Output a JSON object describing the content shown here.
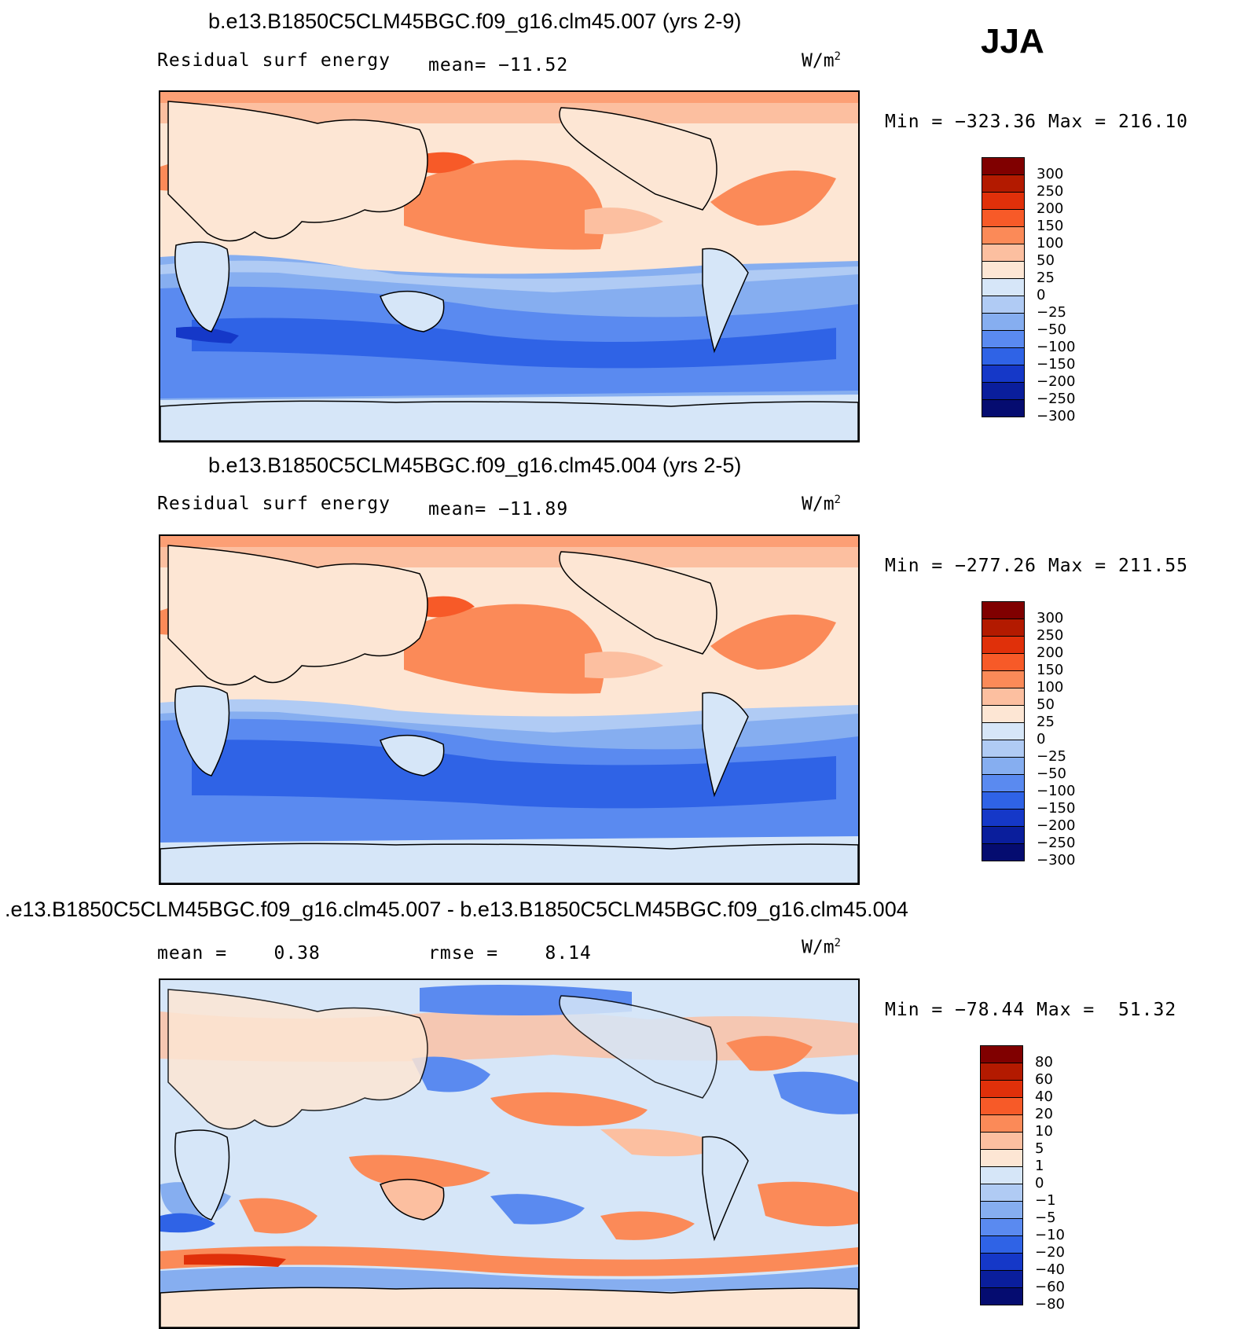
{
  "season": "JJA",
  "panels": [
    {
      "title": "b.e13.B1850C5CLM45BGC.f09_g16.clm45.007 (yrs 2-9)",
      "left_label": "Residual surf energy",
      "center_label": "mean= −11.52",
      "units": "W/m",
      "units_sup": "2",
      "minmax": "Min = −323.36 Max = 216.10"
    },
    {
      "title": "b.e13.B1850C5CLM45BGC.f09_g16.clm45.004 (yrs 2-5)",
      "left_label": "Residual surf energy",
      "center_label": "mean= −11.89",
      "units": "W/m",
      "units_sup": "2",
      "minmax": "Min = −277.26 Max = 211.55"
    },
    {
      "title": ".e13.B1850C5CLM45BGC.f09_g16.clm45.007 - b.e13.B1850C5CLM45BGC.f09_g16.clm45.004",
      "left_label": "mean =    0.38",
      "center_label": "rmse =    8.14",
      "units": "W/m",
      "units_sup": "2",
      "minmax": "Min = −78.44 Max =  51.32"
    }
  ],
  "colors": {
    "scale": [
      "#800000",
      "#b31a00",
      "#e0300a",
      "#f75a28",
      "#fb8a58",
      "#fcbfa0",
      "#fde6d4",
      "#d6e6f8",
      "#b0cbf4",
      "#86aef0",
      "#5a8af0",
      "#2f63e6",
      "#1538c8",
      "#0a1e9c",
      "#050c70"
    ]
  },
  "chart_data": [
    {
      "type": "heatmap",
      "title": "b.e13.B1850C5CLM45BGC.f09_g16.clm45.007 (yrs 2-9)",
      "variable": "Residual surf energy",
      "units": "W/m2",
      "mean": -11.52,
      "min": -323.36,
      "max": 216.1,
      "colorbar_ticks": [
        "300",
        "250",
        "200",
        "150",
        "100",
        "50",
        "25",
        "0",
        "−25",
        "−50",
        "−100",
        "−150",
        "−200",
        "−250",
        "−300"
      ],
      "colorbar_values": [
        300,
        250,
        200,
        150,
        100,
        50,
        25,
        0,
        -25,
        -50,
        -100,
        -150,
        -200,
        -250,
        -300
      ]
    },
    {
      "type": "heatmap",
      "title": "b.e13.B1850C5CLM45BGC.f09_g16.clm45.004 (yrs 2-5)",
      "variable": "Residual surf energy",
      "units": "W/m2",
      "mean": -11.89,
      "min": -277.26,
      "max": 211.55,
      "colorbar_ticks": [
        "300",
        "250",
        "200",
        "150",
        "100",
        "50",
        "25",
        "0",
        "−25",
        "−50",
        "−100",
        "−150",
        "−200",
        "−250",
        "−300"
      ],
      "colorbar_values": [
        300,
        250,
        200,
        150,
        100,
        50,
        25,
        0,
        -25,
        -50,
        -100,
        -150,
        -200,
        -250,
        -300
      ]
    },
    {
      "type": "heatmap",
      "title": ".e13.B1850C5CLM45BGC.f09_g16.clm45.007 - b.e13.B1850C5CLM45BGC.f09_g16.clm45.004",
      "units": "W/m2",
      "mean": 0.38,
      "rmse": 8.14,
      "min": -78.44,
      "max": 51.32,
      "colorbar_ticks": [
        "80",
        "60",
        "40",
        "20",
        "10",
        "5",
        "1",
        "0",
        "−1",
        "−5",
        "−10",
        "−20",
        "−40",
        "−60",
        "−80"
      ],
      "colorbar_values": [
        80,
        60,
        40,
        20,
        10,
        5,
        1,
        0,
        -1,
        -5,
        -10,
        -20,
        -40,
        -60,
        -80
      ]
    }
  ]
}
